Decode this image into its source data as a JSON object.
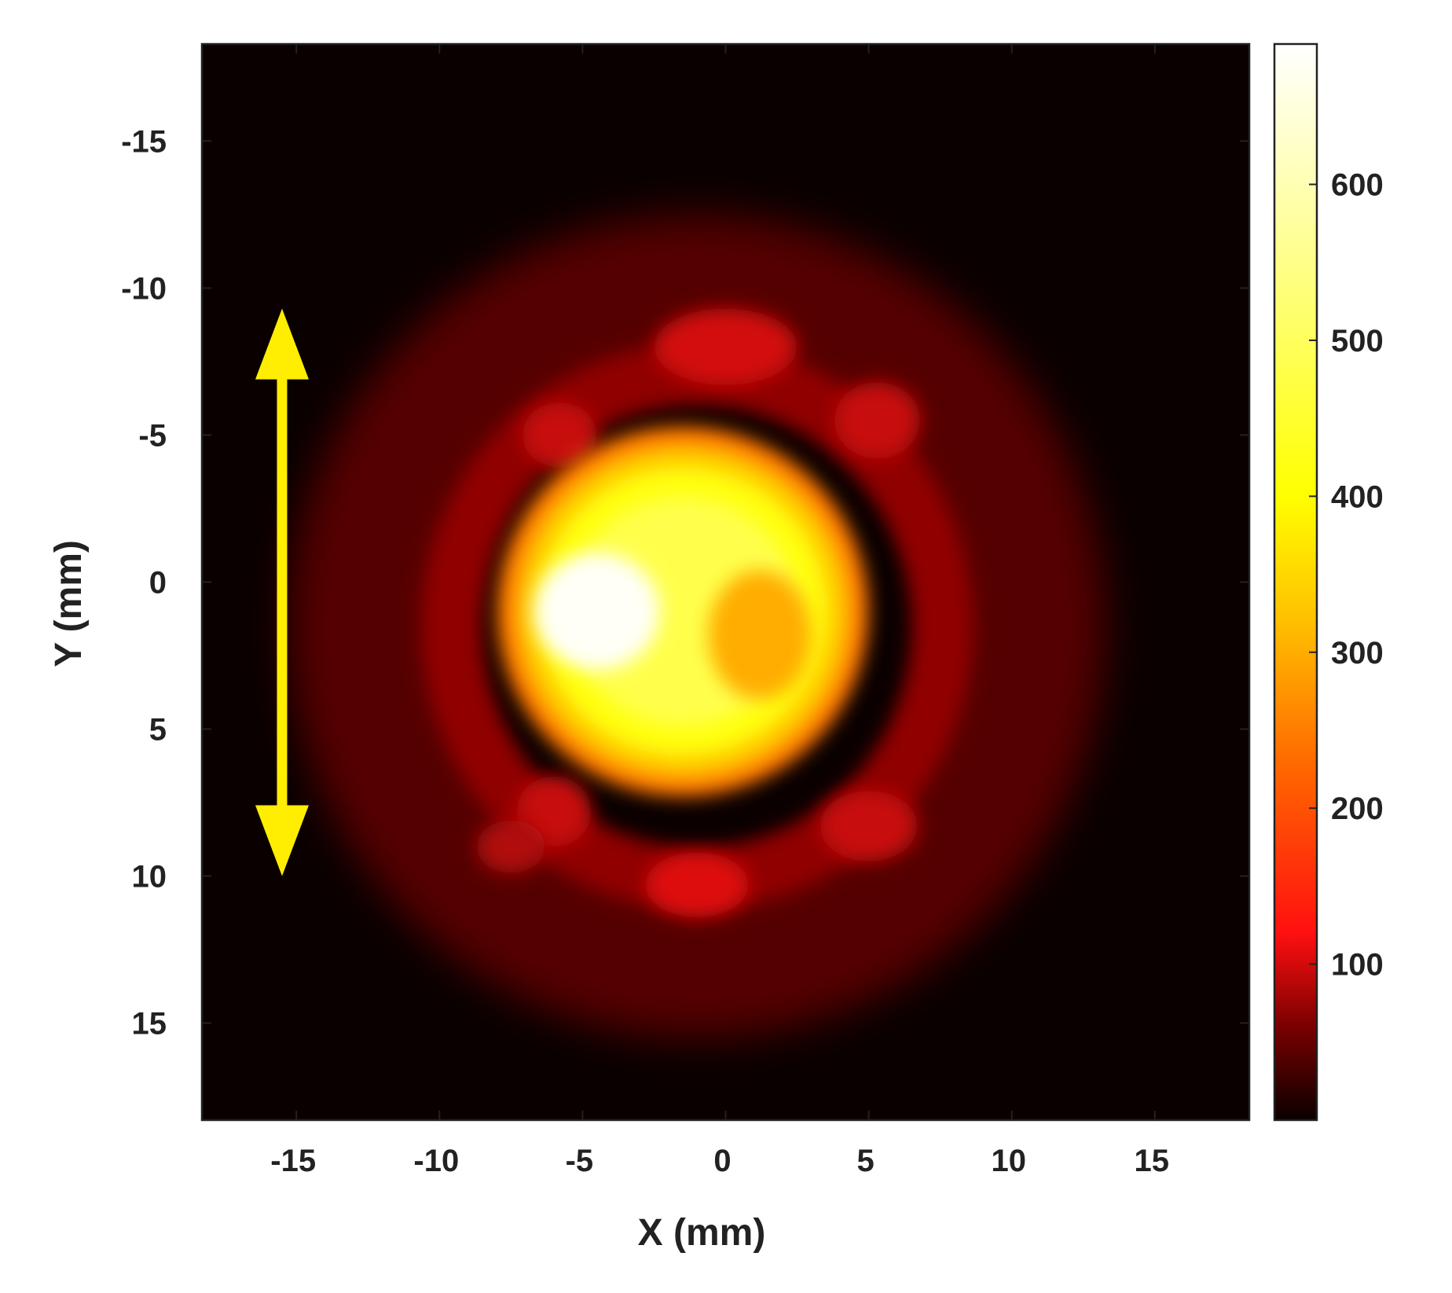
{
  "chart_data": {
    "type": "heatmap",
    "xlabel": "X (mm)",
    "ylabel": "Y (mm)",
    "xlim": [
      -18.3,
      18.3
    ],
    "ylim": [
      -18.3,
      18.3
    ],
    "y_axis_inverted": true,
    "xticks": [
      -15,
      -10,
      -5,
      0,
      5,
      10,
      15
    ],
    "yticks": [
      -15,
      -10,
      -5,
      0,
      5,
      10,
      15
    ],
    "colorbar": {
      "colormap": "hot",
      "range": [
        0,
        690
      ],
      "ticks": [
        100,
        200,
        300,
        400,
        500,
        600
      ]
    },
    "colormap_stops": [
      {
        "value": 0,
        "color": "#0a0000"
      },
      {
        "value": 60,
        "color": "#7a0000"
      },
      {
        "value": 120,
        "color": "#ff1010"
      },
      {
        "value": 230,
        "color": "#ff6a00"
      },
      {
        "value": 320,
        "color": "#ffc000"
      },
      {
        "value": 400,
        "color": "#ffff00"
      },
      {
        "value": 520,
        "color": "#ffff70"
      },
      {
        "value": 690,
        "color": "#ffffff"
      }
    ],
    "features": [
      {
        "name": "central-lobe",
        "x": -1.5,
        "y": 1.0,
        "rx": 6.5,
        "ry": 6.3,
        "peak": 600
      },
      {
        "name": "hot-spot",
        "x": -4.5,
        "y": 1.0,
        "rx": 2.2,
        "ry": 2.0,
        "peak": 680
      },
      {
        "name": "spot-top",
        "x": 0.0,
        "y": -8.0,
        "rx": 2.5,
        "ry": 1.3,
        "peak": 100
      },
      {
        "name": "spot-upper-left",
        "x": -5.8,
        "y": -5.0,
        "rx": 1.3,
        "ry": 1.1,
        "peak": 95
      },
      {
        "name": "spot-upper-right",
        "x": 5.3,
        "y": -5.5,
        "rx": 1.5,
        "ry": 1.3,
        "peak": 95
      },
      {
        "name": "spot-lower-left",
        "x": -6.0,
        "y": 7.8,
        "rx": 1.3,
        "ry": 1.2,
        "peak": 95
      },
      {
        "name": "spot-lower-right",
        "x": 5.0,
        "y": 8.3,
        "rx": 1.7,
        "ry": 1.2,
        "peak": 95
      },
      {
        "name": "spot-bottom",
        "x": -1.0,
        "y": 10.3,
        "rx": 1.8,
        "ry": 1.1,
        "peak": 105
      },
      {
        "name": "spot-lower-far-left",
        "x": -7.5,
        "y": 9.0,
        "rx": 1.2,
        "ry": 0.9,
        "peak": 85
      }
    ],
    "annotation": {
      "shape": "double-headed arrow",
      "color": "#ffee00",
      "x": -15.5,
      "y_from": -9.3,
      "y_to": 10.0
    }
  }
}
